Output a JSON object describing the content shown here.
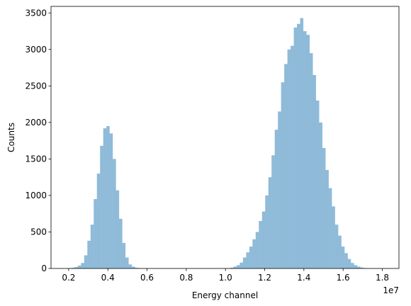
{
  "chart_data": {
    "type": "bar",
    "title": "",
    "xlabel": "Energy channel",
    "ylabel": "Counts",
    "x_offset_label": "1e7",
    "xlim": [
      0.11,
      1.885
    ],
    "ylim": [
      0,
      3590
    ],
    "grid": false,
    "legend": "none",
    "bar_color": "#1f77b4",
    "bar_opacity": 0.5,
    "x_ticks": [
      0.2,
      0.4,
      0.6,
      0.8,
      1.0,
      1.2,
      1.4,
      1.6,
      1.8
    ],
    "x_tick_labels": [
      "0.2",
      "0.4",
      "0.6",
      "0.8",
      "1.0",
      "1.2",
      "1.4",
      "1.6",
      "1.8"
    ],
    "y_ticks": [
      0,
      500,
      1000,
      1500,
      2000,
      2500,
      3000,
      3500
    ],
    "y_tick_labels": [
      "0",
      "500",
      "1000",
      "1500",
      "2000",
      "2500",
      "3000",
      "3500"
    ],
    "bin_start": 0.182,
    "bin_width": 0.0162,
    "values": [
      2,
      5,
      10,
      20,
      40,
      75,
      180,
      380,
      600,
      950,
      1300,
      1680,
      1920,
      1950,
      1850,
      1500,
      1070,
      680,
      350,
      150,
      55,
      25,
      10,
      5,
      2,
      1,
      0,
      0,
      0,
      0,
      0,
      0,
      0,
      0,
      0,
      0,
      0,
      0,
      0,
      0,
      0,
      0,
      0,
      0,
      0,
      0,
      0,
      0,
      0,
      0,
      1,
      4,
      10,
      25,
      45,
      80,
      150,
      220,
      300,
      400,
      500,
      650,
      780,
      1000,
      1250,
      1550,
      1900,
      2150,
      2550,
      2800,
      3000,
      3050,
      3300,
      3350,
      3430,
      3250,
      3200,
      2950,
      2650,
      2300,
      2000,
      1650,
      1350,
      1100,
      850,
      600,
      450,
      300,
      210,
      130,
      75,
      45,
      25,
      12,
      6,
      3,
      1,
      1
    ]
  }
}
